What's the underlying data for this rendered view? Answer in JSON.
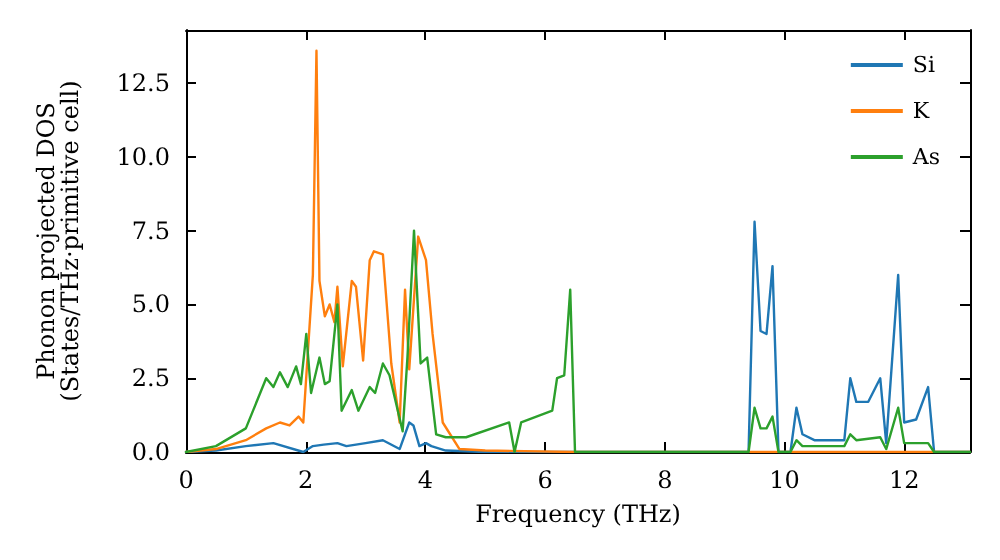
{
  "chart_data": {
    "type": "line",
    "xlabel": "Frequency (THz)",
    "ylabel": "Phonon projected DOS\n(States/THz·primitive cell)",
    "xlim": [
      0,
      13.1
    ],
    "xticks": [
      0,
      2,
      4,
      6,
      8,
      10,
      12
    ],
    "ylim": [
      0,
      14.3
    ],
    "yticks": [
      {
        "value": 0,
        "label": "0.0"
      },
      2.5,
      {
        "value": 5,
        "label": "5.0"
      },
      7.5,
      {
        "value": 10,
        "label": "10.0"
      },
      12.5
    ],
    "grid": false,
    "legend": "top right",
    "marker": "none",
    "line_style": "solid",
    "series": [
      {
        "name": "Si",
        "color": "#1f77b4",
        "x": [
          0,
          0.5,
          1,
          1.46,
          1.96,
          2.12,
          2.3,
          2.53,
          2.68,
          3.0,
          3.29,
          3.57,
          3.73,
          3.8,
          3.9,
          4.01,
          4.1,
          4.34,
          5,
          9.4,
          9.5,
          9.6,
          9.7,
          9.8,
          9.9,
          10.1,
          10.2,
          10.3,
          10.5,
          11,
          11.1,
          11.2,
          11.4,
          11.6,
          11.7,
          11.9,
          12,
          12.2,
          12.4,
          12.5,
          13.1
        ],
        "values": [
          0,
          0.05,
          0.2,
          0.3,
          0.0,
          0.2,
          0.25,
          0.3,
          0.2,
          0.3,
          0.4,
          0.1,
          1.0,
          0.9,
          0.2,
          0.3,
          0.2,
          0.05,
          0,
          0,
          7.8,
          4.1,
          4.0,
          6.3,
          0,
          0,
          1.5,
          0.6,
          0.4,
          0.4,
          2.5,
          1.7,
          1.7,
          2.5,
          0.3,
          6.0,
          1.0,
          1.1,
          2.2,
          0,
          0
        ]
      },
      {
        "name": "K",
        "color": "#ff7f0e",
        "x": [
          0,
          0.5,
          1,
          1.34,
          1.57,
          1.73,
          1.88,
          1.96,
          2.12,
          2.18,
          2.23,
          2.32,
          2.4,
          2.48,
          2.53,
          2.62,
          2.77,
          2.84,
          2.96,
          3.07,
          3.14,
          3.29,
          3.43,
          3.57,
          3.66,
          3.73,
          3.88,
          4.01,
          4.12,
          4.29,
          4.57,
          5,
          6.5,
          13.1
        ],
        "values": [
          0,
          0.1,
          0.4,
          0.8,
          1.0,
          0.9,
          1.2,
          1.0,
          6.0,
          13.6,
          5.8,
          4.6,
          5.0,
          4.4,
          5.6,
          2.9,
          5.8,
          5.6,
          3.1,
          6.5,
          6.8,
          6.7,
          3.0,
          1.0,
          5.5,
          2.8,
          7.3,
          6.5,
          4.0,
          1.0,
          0.1,
          0.05,
          0,
          0
        ]
      },
      {
        "name": "As",
        "color": "#2ca02c",
        "x": [
          0,
          0.5,
          1,
          1.34,
          1.46,
          1.57,
          1.7,
          1.84,
          1.92,
          2.01,
          2.09,
          2.23,
          2.32,
          2.4,
          2.53,
          2.6,
          2.77,
          2.88,
          3.07,
          3.16,
          3.29,
          3.4,
          3.62,
          3.7,
          3.81,
          3.92,
          4.03,
          4.18,
          4.34,
          4.68,
          5.4,
          5.49,
          5.6,
          6.12,
          6.2,
          6.32,
          6.42,
          6.5,
          9.4,
          9.5,
          9.6,
          9.7,
          9.8,
          9.9,
          10.1,
          10.2,
          10.3,
          11,
          11.1,
          11.2,
          11.6,
          11.7,
          11.9,
          12,
          12.4,
          12.5,
          13.1
        ],
        "values": [
          0,
          0.2,
          0.8,
          2.5,
          2.2,
          2.7,
          2.2,
          2.9,
          2.3,
          4.0,
          2.0,
          3.2,
          2.3,
          2.4,
          5.0,
          1.4,
          2.1,
          1.4,
          2.2,
          2.0,
          3.0,
          2.6,
          0.7,
          3.2,
          7.5,
          3.0,
          3.2,
          0.6,
          0.5,
          0.5,
          1.0,
          0,
          1.0,
          1.4,
          2.5,
          2.6,
          5.5,
          0,
          0,
          1.5,
          0.8,
          0.8,
          1.2,
          0,
          0,
          0.4,
          0.2,
          0.2,
          0.6,
          0.4,
          0.5,
          0.1,
          1.5,
          0.3,
          0.3,
          0,
          0
        ]
      }
    ]
  }
}
